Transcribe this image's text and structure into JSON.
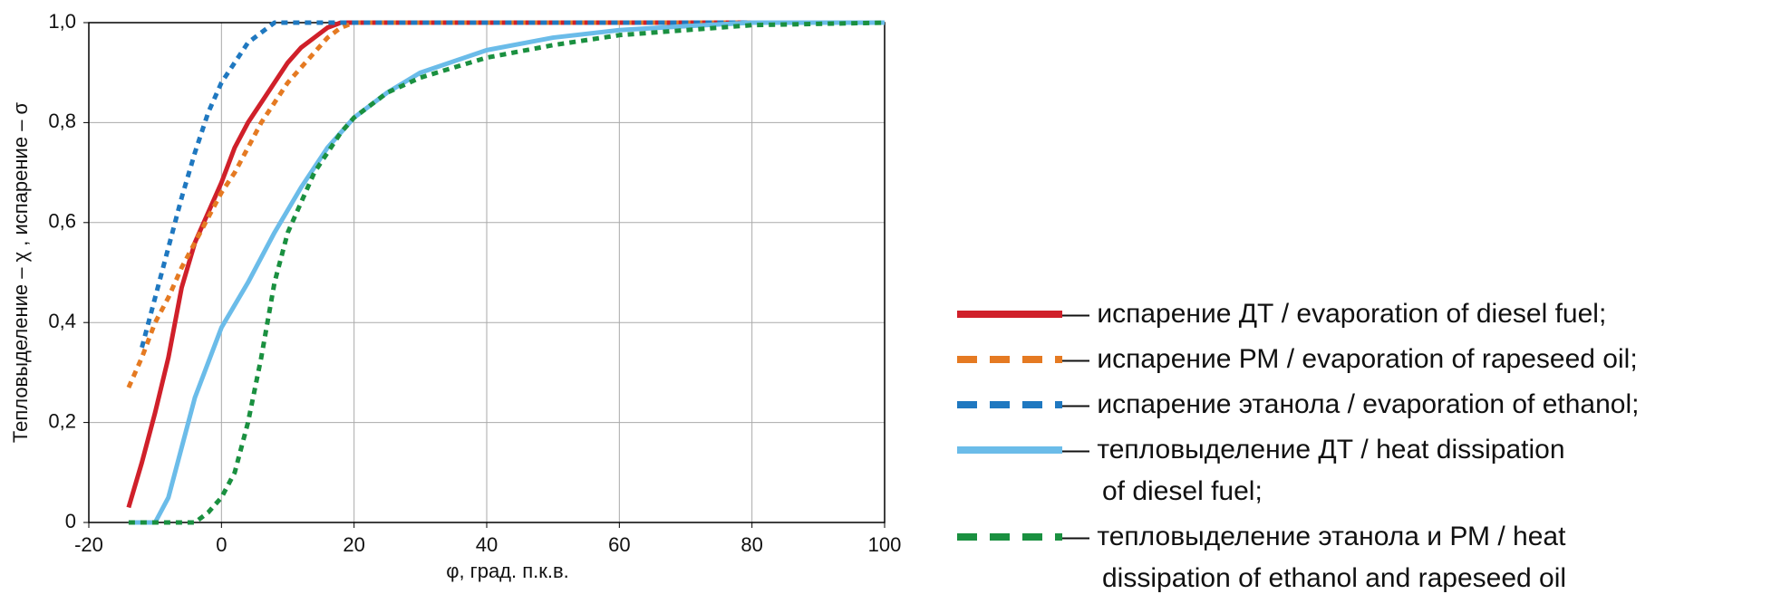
{
  "chart_data": {
    "type": "line",
    "xlabel": "φ, град. п.к.в.",
    "ylabel": "Тепловыделение – χ , испарение – σ",
    "xlim": [
      -20,
      100
    ],
    "xticks": [
      -20,
      0,
      20,
      40,
      60,
      80,
      100
    ],
    "ylim": [
      0,
      1.0
    ],
    "yticks": [
      0,
      {
        "value": 0.2,
        "label": "0,2"
      },
      {
        "value": 0.4,
        "label": "0,4"
      },
      {
        "value": 0.6,
        "label": "0,6"
      },
      {
        "value": 0.8,
        "label": "0,8"
      },
      {
        "value": 1.0,
        "label": "1,0"
      }
    ],
    "grid": true,
    "legend": "right",
    "series": [
      {
        "name": "— испарение ДТ / evaporation of diesel fuel;",
        "color": "#d0202a",
        "style": "solid",
        "x": [
          -14,
          -12,
          -10,
          -8,
          -6,
          -4,
          -2,
          0,
          2,
          4,
          6,
          8,
          10,
          12,
          14,
          16,
          18,
          20,
          100
        ],
        "values": [
          0.03,
          0.12,
          0.22,
          0.33,
          0.47,
          0.56,
          0.62,
          0.68,
          0.75,
          0.8,
          0.84,
          0.88,
          0.92,
          0.95,
          0.97,
          0.99,
          1.0,
          1.0,
          1.0
        ]
      },
      {
        "name": "— испарение РМ / evaporation of rapeseed oil;",
        "color": "#e57a22",
        "style": "dashed",
        "x": [
          -14,
          -12,
          -10,
          -8,
          -6,
          -4,
          -2,
          0,
          2,
          4,
          6,
          8,
          10,
          12,
          14,
          16,
          18,
          20,
          100
        ],
        "values": [
          0.27,
          0.33,
          0.4,
          0.45,
          0.51,
          0.56,
          0.61,
          0.66,
          0.7,
          0.75,
          0.8,
          0.84,
          0.88,
          0.91,
          0.94,
          0.97,
          0.99,
          1.0,
          1.0
        ]
      },
      {
        "name": "— испарение этанола / evaporation of ethanol;",
        "color": "#1f78c0",
        "style": "dashed",
        "x": [
          -12,
          -10,
          -8,
          -6,
          -4,
          -2,
          0,
          2,
          4,
          6,
          8,
          100
        ],
        "values": [
          0.35,
          0.45,
          0.55,
          0.65,
          0.74,
          0.82,
          0.88,
          0.92,
          0.96,
          0.98,
          1.0,
          1.0
        ]
      },
      {
        "name": "— тепловыделение ДТ / heat dissipation\nof diesel fuel;",
        "color": "#6bbce9",
        "style": "solid",
        "x": [
          -14,
          -10,
          -8,
          -6,
          -4,
          -2,
          0,
          4,
          8,
          12,
          16,
          20,
          25,
          30,
          40,
          50,
          60,
          70,
          80,
          100
        ],
        "values": [
          0.0,
          0.0,
          0.05,
          0.15,
          0.25,
          0.32,
          0.39,
          0.48,
          0.58,
          0.67,
          0.75,
          0.81,
          0.86,
          0.9,
          0.945,
          0.97,
          0.985,
          0.993,
          1.0,
          1.0
        ]
      },
      {
        "name": "— тепловыделение этанола и РМ / heat\ndissipation of ethanol and rapeseed oil",
        "color": "#1a9040",
        "style": "dashed",
        "x": [
          -14,
          -4,
          -2,
          0,
          2,
          4,
          6,
          8,
          10,
          14,
          18,
          20,
          25,
          30,
          40,
          50,
          60,
          70,
          80,
          100
        ],
        "values": [
          0.0,
          0.0,
          0.02,
          0.05,
          0.1,
          0.2,
          0.33,
          0.48,
          0.58,
          0.7,
          0.78,
          0.81,
          0.86,
          0.89,
          0.93,
          0.955,
          0.975,
          0.985,
          0.995,
          1.0
        ]
      }
    ]
  }
}
